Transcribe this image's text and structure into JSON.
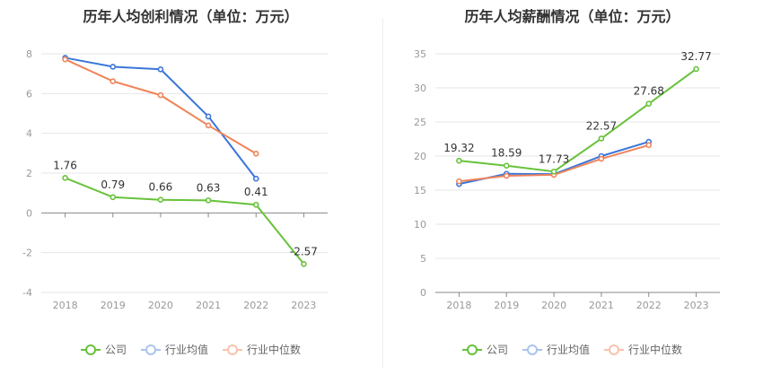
{
  "chart_data": [
    {
      "type": "line",
      "title": "历年人均创利情况（单位：万元）",
      "categories": [
        "2018",
        "2019",
        "2020",
        "2021",
        "2022",
        "2023"
      ],
      "ylim": [
        -4,
        8
      ],
      "yticks": [
        -4,
        -2,
        0,
        2,
        4,
        6,
        8
      ],
      "grid": true,
      "legend_position": "bottom",
      "series": [
        {
          "name": "公司",
          "color": "#67c23a",
          "values": [
            1.76,
            0.79,
            0.66,
            0.63,
            0.41,
            -2.57
          ],
          "labels": [
            "1.76",
            "0.79",
            "0.66",
            "0.63",
            "0.41",
            "-2.57"
          ]
        },
        {
          "name": "行业均值",
          "color": "#3b76d9",
          "values": [
            7.8,
            7.35,
            7.22,
            4.85,
            1.72,
            null
          ]
        },
        {
          "name": "行业中位数",
          "color": "#f0845a",
          "values": [
            7.72,
            6.62,
            5.92,
            4.4,
            2.98,
            null
          ]
        }
      ]
    },
    {
      "type": "line",
      "title": "历年人均薪酬情况（单位：万元）",
      "categories": [
        "2018",
        "2019",
        "2020",
        "2021",
        "2022",
        "2023"
      ],
      "ylim": [
        0,
        35
      ],
      "yticks": [
        0,
        5,
        10,
        15,
        20,
        25,
        30,
        35
      ],
      "grid": true,
      "legend_position": "bottom",
      "series": [
        {
          "name": "公司",
          "color": "#67c23a",
          "values": [
            19.32,
            18.59,
            17.73,
            22.57,
            27.68,
            32.77
          ],
          "labels": [
            "19.32",
            "18.59",
            "17.73",
            "22.57",
            "27.68",
            "32.77"
          ]
        },
        {
          "name": "行业均值",
          "color": "#3b76d9",
          "values": [
            15.9,
            17.4,
            17.35,
            20.0,
            22.1,
            null
          ]
        },
        {
          "name": "行业中位数",
          "color": "#f0845a",
          "values": [
            16.3,
            17.1,
            17.25,
            19.6,
            21.6,
            null
          ]
        }
      ]
    }
  ]
}
